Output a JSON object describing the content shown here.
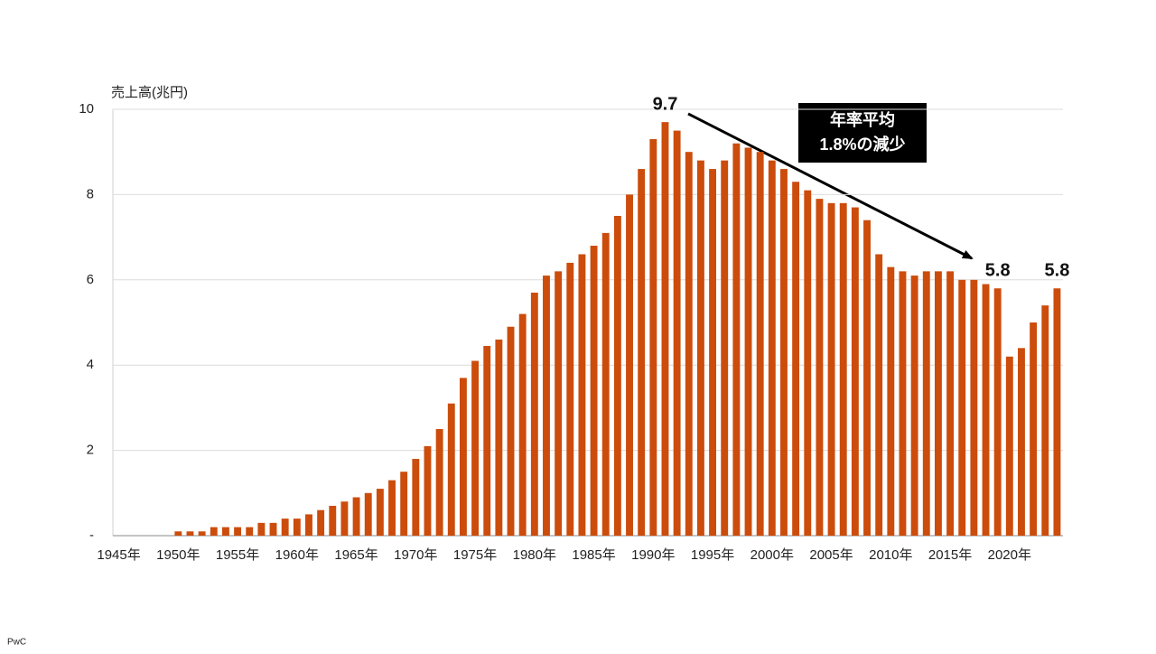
{
  "chart_data": {
    "type": "bar",
    "y_label": "売上高(兆円)",
    "color": "#cc4c0c",
    "categories": [
      "1945年",
      null,
      null,
      null,
      null,
      "1950年",
      null,
      null,
      null,
      null,
      "1955年",
      null,
      null,
      null,
      null,
      "1960年",
      null,
      null,
      null,
      null,
      "1965年",
      null,
      null,
      null,
      null,
      "1970年",
      null,
      null,
      null,
      null,
      "1975年",
      null,
      null,
      null,
      null,
      "1980年",
      null,
      null,
      null,
      null,
      "1985年",
      null,
      null,
      null,
      null,
      "1990年",
      null,
      null,
      null,
      null,
      "1995年",
      null,
      null,
      null,
      null,
      "2000年",
      null,
      null,
      null,
      null,
      "2005年",
      null,
      null,
      null,
      null,
      "2010年",
      null,
      null,
      null,
      null,
      "2015年",
      null,
      null,
      null,
      null,
      "2020年",
      null,
      null,
      null,
      null
    ],
    "values": [
      null,
      null,
      null,
      null,
      null,
      0.1,
      0.1,
      0.1,
      0.2,
      0.2,
      0.2,
      0.2,
      0.3,
      0.3,
      0.4,
      0.4,
      0.5,
      0.6,
      0.7,
      0.8,
      0.9,
      1.0,
      1.1,
      1.3,
      1.5,
      1.8,
      2.1,
      2.5,
      3.1,
      3.7,
      4.1,
      4.45,
      4.6,
      4.9,
      5.2,
      5.7,
      6.1,
      6.2,
      6.4,
      6.6,
      6.8,
      7.1,
      7.5,
      8.0,
      8.6,
      9.3,
      9.7,
      9.5,
      9.0,
      8.8,
      8.6,
      8.8,
      9.2,
      9.1,
      9.0,
      8.8,
      8.6,
      8.3,
      8.1,
      7.9,
      7.8,
      7.8,
      7.7,
      7.4,
      6.6,
      6.3,
      6.2,
      6.1,
      6.2,
      6.2,
      6.2,
      6.0,
      6.0,
      5.9,
      5.8,
      4.2,
      4.4,
      5.0,
      5.4,
      5.8
    ],
    "value_labels": [
      null,
      null,
      null,
      null,
      null,
      null,
      null,
      null,
      null,
      null,
      null,
      null,
      null,
      null,
      null,
      null,
      null,
      null,
      null,
      null,
      null,
      null,
      null,
      null,
      null,
      null,
      null,
      null,
      null,
      null,
      null,
      null,
      null,
      null,
      null,
      null,
      null,
      null,
      null,
      null,
      null,
      null,
      null,
      null,
      null,
      null,
      "9.7",
      null,
      null,
      null,
      null,
      null,
      null,
      null,
      null,
      null,
      null,
      null,
      null,
      null,
      null,
      null,
      null,
      null,
      null,
      null,
      null,
      null,
      null,
      null,
      null,
      null,
      null,
      null,
      "5.8",
      null,
      null,
      null,
      null,
      "5.8"
    ],
    "ylim": [
      0,
      10
    ],
    "yticks": [
      {
        "value": 0,
        "label": "-"
      },
      2,
      4,
      6,
      8,
      10
    ],
    "grid": true,
    "annotation": [
      "年率平均",
      "1.8%の減少"
    ]
  },
  "footer": "PwC"
}
